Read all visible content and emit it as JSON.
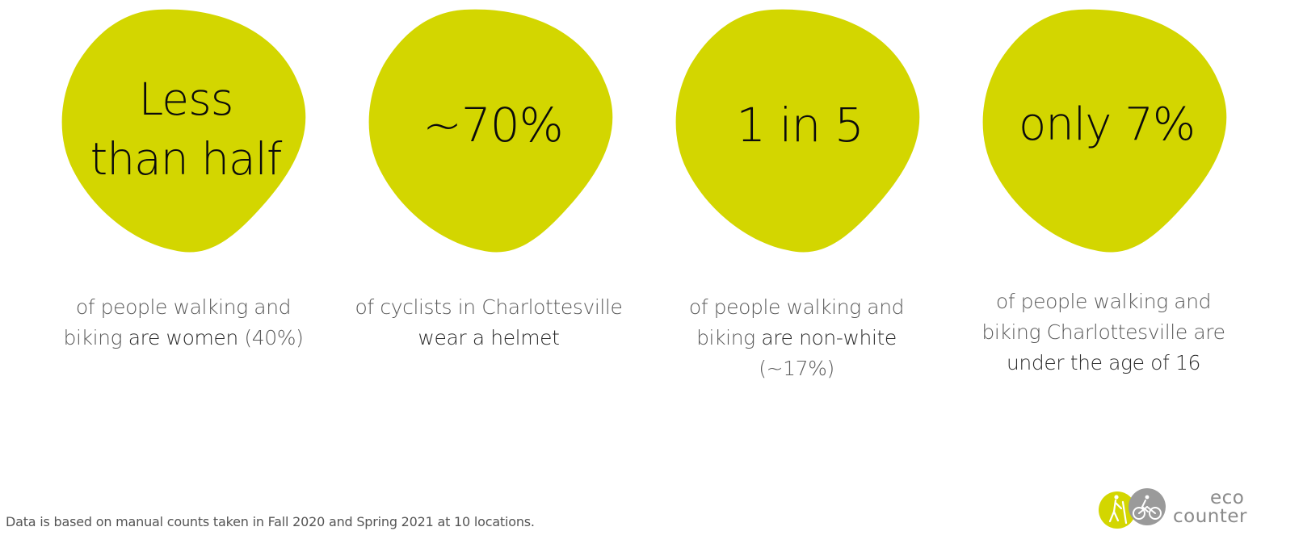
{
  "colors": {
    "accent": "#d3d600",
    "text_dark": "#0b0b0b",
    "text_muted": "#5a5a5a",
    "logo_gray": "#8a8a8a"
  },
  "stats": [
    {
      "headline_lines": [
        "Less",
        "than half"
      ],
      "desc": [
        [
          {
            "t": "of people walking and",
            "em": false
          }
        ],
        [
          {
            "t": "biking ",
            "em": false
          },
          {
            "t": "are women",
            "em": true
          },
          {
            "t": " (40%)",
            "em": false
          }
        ]
      ]
    },
    {
      "headline_lines": [
        "~70%"
      ],
      "desc": [
        [
          {
            "t": "of cyclists in Charlottesville",
            "em": false
          }
        ],
        [
          {
            "t": "wear a helmet",
            "em": true
          }
        ]
      ]
    },
    {
      "headline_lines": [
        "1 in 5"
      ],
      "desc": [
        [
          {
            "t": "of people walking and",
            "em": false
          }
        ],
        [
          {
            "t": "biking ",
            "em": false
          },
          {
            "t": "are non-white",
            "em": true
          }
        ],
        [
          {
            "t": "(~17%)",
            "em": false
          }
        ]
      ]
    },
    {
      "headline_lines": [
        "only 7%"
      ],
      "desc": [
        [
          {
            "t": "of people walking and",
            "em": false
          }
        ],
        [
          {
            "t": "biking Charlottesville are",
            "em": false
          }
        ],
        [
          {
            "t": "under the age of 16",
            "em": true
          }
        ]
      ]
    }
  ],
  "footnote": "Data is based on manual counts taken in Fall 2020 and Spring 2021 at 10 locations.",
  "logo": {
    "line1": "eco",
    "line2": "counter",
    "icons": [
      "hiker-icon",
      "cyclist-icon"
    ]
  }
}
